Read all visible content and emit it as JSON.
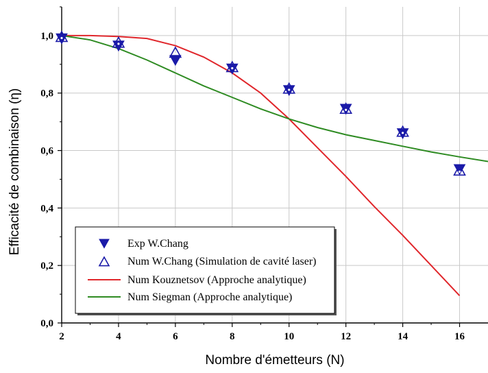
{
  "chart_data": {
    "type": "scatter",
    "xlabel": "Nombre d'émetteurs (N)",
    "ylabel": "Efficacité de combinaison (η)",
    "xlim": [
      2,
      17
    ],
    "ylim": [
      0,
      1.1
    ],
    "x_ticks": [
      2,
      4,
      6,
      8,
      10,
      12,
      14,
      16
    ],
    "y_ticks": [
      0.0,
      0.2,
      0.4,
      0.6,
      0.8,
      1.0
    ],
    "x_tick_labels": [
      "2",
      "4",
      "6",
      "8",
      "10",
      "12",
      "14",
      "16"
    ],
    "y_tick_labels": [
      "0,0",
      "0,2",
      "0,4",
      "0,6",
      "0,8",
      "1,0"
    ],
    "grid": true,
    "legend_position": "bottom-left",
    "series": [
      {
        "name": "Exp W.Chang",
        "kind": "marker",
        "marker": "triangle-down-filled",
        "color": "#1a1aa8",
        "x": [
          2,
          4,
          6,
          8,
          10,
          12,
          14,
          16
        ],
        "y": [
          0.99,
          0.965,
          0.915,
          0.885,
          0.81,
          0.745,
          0.66,
          0.535
        ]
      },
      {
        "name": "Num W.Chang (Simulation de cavité laser)",
        "kind": "marker",
        "marker": "triangle-up-open",
        "color": "#1a1aa8",
        "x": [
          2,
          4,
          6,
          8,
          10,
          12,
          14,
          16
        ],
        "y": [
          0.995,
          0.975,
          0.94,
          0.89,
          0.815,
          0.745,
          0.665,
          0.53
        ]
      },
      {
        "name": "Num Kouznetsov (Approche analytique)",
        "kind": "line",
        "color": "#e0262b",
        "x": [
          2,
          3,
          4,
          5,
          6,
          7,
          8,
          9,
          10,
          11,
          12,
          13,
          14,
          15,
          16
        ],
        "y": [
          1.0,
          1.0,
          0.997,
          0.99,
          0.965,
          0.925,
          0.87,
          0.8,
          0.71,
          0.61,
          0.51,
          0.405,
          0.305,
          0.2,
          0.095
        ]
      },
      {
        "name": "Num Siegman (Approche analytique)",
        "kind": "line",
        "color": "#2e8b22",
        "x": [
          2,
          3,
          4,
          5,
          6,
          7,
          8,
          9,
          10,
          11,
          12,
          13,
          14,
          15,
          16,
          17
        ],
        "y": [
          1.0,
          0.985,
          0.955,
          0.915,
          0.87,
          0.825,
          0.785,
          0.745,
          0.71,
          0.68,
          0.655,
          0.635,
          0.615,
          0.595,
          0.578,
          0.562
        ]
      }
    ]
  }
}
